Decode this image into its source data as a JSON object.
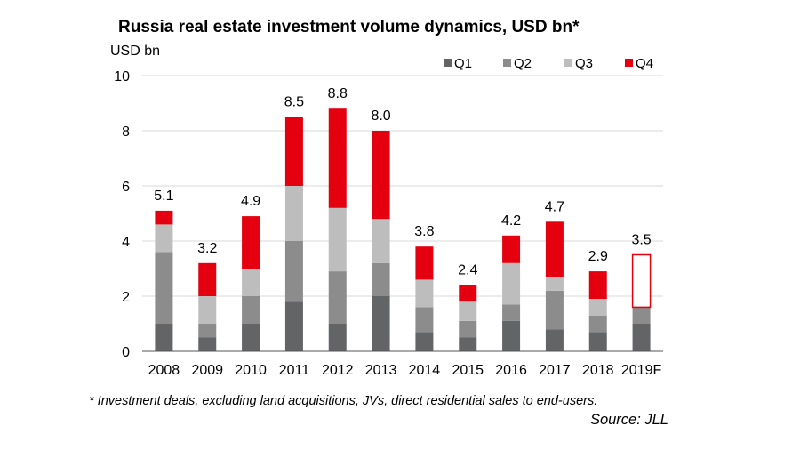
{
  "chart_data": {
    "type": "bar",
    "stacked": true,
    "title": "Russia real estate investment volume dynamics, USD bn*",
    "ylabel": "USD bn",
    "xlabel": "",
    "ylim": [
      0,
      10
    ],
    "yticks": [
      "0",
      "2",
      "4",
      "6",
      "8",
      "10"
    ],
    "grid": true,
    "legend_position": "top-right",
    "categories": [
      "2008",
      "2009",
      "2010",
      "2011",
      "2012",
      "2013",
      "2014",
      "2015",
      "2016",
      "2017",
      "2018",
      "2019F"
    ],
    "series": [
      {
        "name": "Q1",
        "color": "#636466",
        "values": [
          1.0,
          0.5,
          1.0,
          1.8,
          1.0,
          2.0,
          0.7,
          0.5,
          1.1,
          0.8,
          0.7,
          1.0
        ]
      },
      {
        "name": "Q2",
        "color": "#8c8c8c",
        "values": [
          2.6,
          0.5,
          1.0,
          2.2,
          1.9,
          1.2,
          0.9,
          0.6,
          0.6,
          1.4,
          0.6,
          0.6
        ]
      },
      {
        "name": "Q3",
        "color": "#bdbdbd",
        "values": [
          1.0,
          1.0,
          1.0,
          2.0,
          2.3,
          1.6,
          1.0,
          0.7,
          1.5,
          0.5,
          0.6,
          0.0
        ]
      },
      {
        "name": "Q4",
        "color": "#e4000f",
        "values": [
          0.5,
          1.2,
          1.9,
          2.5,
          3.6,
          3.2,
          1.2,
          0.6,
          1.0,
          2.0,
          1.0,
          1.9
        ]
      }
    ],
    "forecast_category": "2019F",
    "data_labels": [
      "5.1",
      "3.2",
      "4.9",
      "8.5",
      "8.8",
      "8.0",
      "3.8",
      "2.4",
      "4.2",
      "4.7",
      "2.9",
      "3.5"
    ],
    "footnote": "* Investment deals, excluding land acquisitions, JVs, direct residential sales to end-users.",
    "source": "Source: JLL"
  }
}
